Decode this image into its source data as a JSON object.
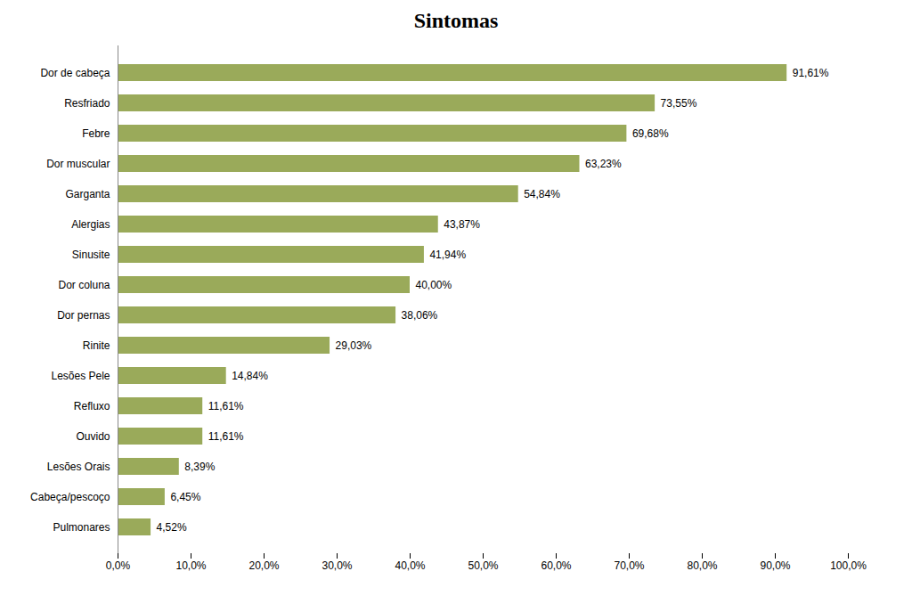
{
  "chart_data": {
    "type": "bar",
    "orientation": "horizontal",
    "title": "Sintomas",
    "categories": [
      "Pulmonares",
      "Cabeça/pescoço",
      "Lesões Orais",
      "Ouvido",
      "Refluxo",
      "Lesões Pele",
      "Rinite",
      "Dor pernas",
      "Dor coluna",
      "Sinusite",
      "Alergias",
      "Garganta",
      "Dor muscular",
      "Febre",
      "Resfriado",
      "Dor de cabeça"
    ],
    "values": [
      4.52,
      6.45,
      8.39,
      11.61,
      11.61,
      14.84,
      29.03,
      38.06,
      40.0,
      41.94,
      43.87,
      54.84,
      63.23,
      69.68,
      73.55,
      91.61
    ],
    "value_labels": [
      "4,52%",
      "6,45%",
      "8,39%",
      "11,61%",
      "11,61%",
      "14,84%",
      "29,03%",
      "38,06%",
      "40,00%",
      "41,94%",
      "43,87%",
      "54,84%",
      "63,23%",
      "69,68%",
      "73,55%",
      "91,61%"
    ],
    "data_labels": true,
    "color": "#9aaa5a",
    "xlim": [
      0,
      100
    ],
    "xticks": [
      {
        "value": 0,
        "label": "0,0%"
      },
      {
        "value": 10,
        "label": "10,0%"
      },
      {
        "value": 20,
        "label": "20,0%"
      },
      {
        "value": 30,
        "label": "30,0%"
      },
      {
        "value": 40,
        "label": "40,0%"
      },
      {
        "value": 50,
        "label": "50,0%"
      },
      {
        "value": 60,
        "label": "60,0%"
      },
      {
        "value": 70,
        "label": "70,0%"
      },
      {
        "value": 80,
        "label": "80,0%"
      },
      {
        "value": 90,
        "label": "90,0%"
      },
      {
        "value": 100,
        "label": "100,0%"
      }
    ],
    "grid": false
  }
}
